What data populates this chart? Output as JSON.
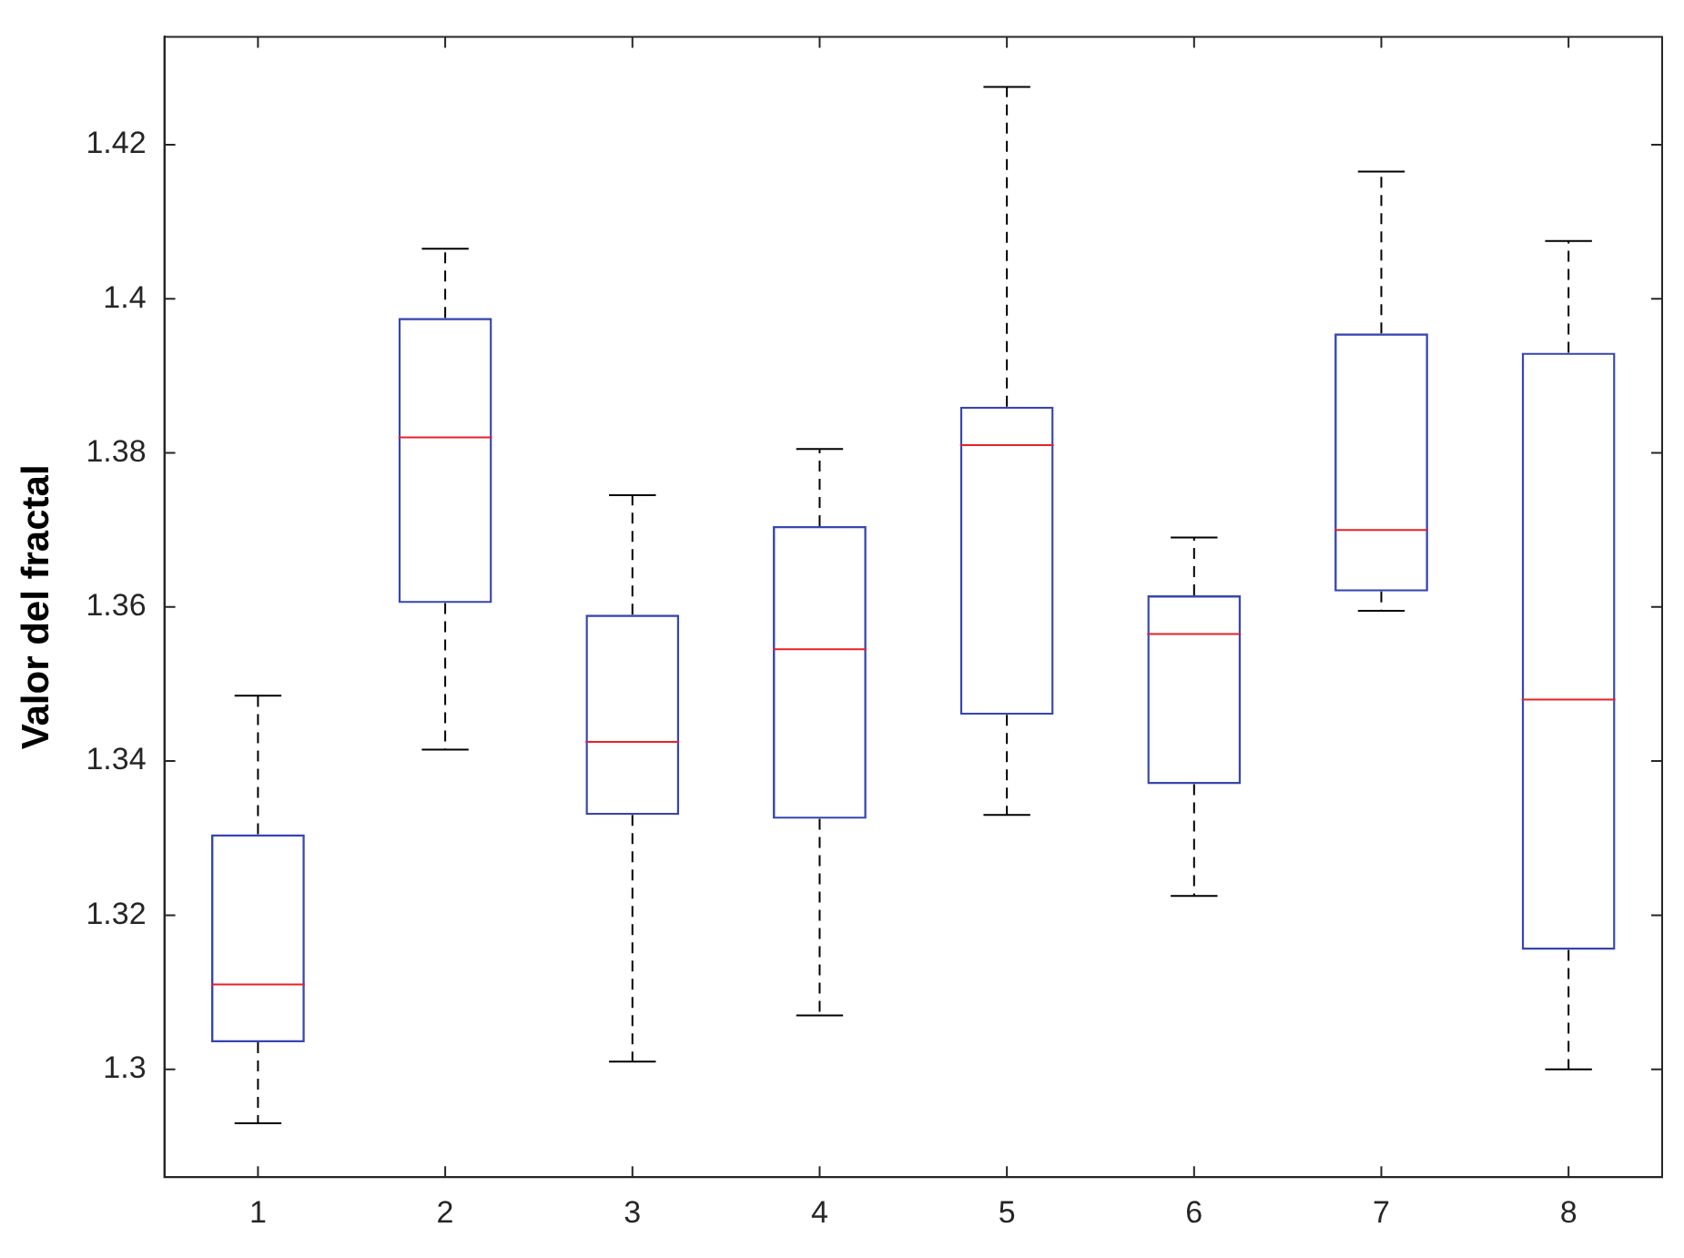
{
  "chart_data": {
    "type": "box",
    "ylabel": "Valor del fractal",
    "categories": [
      "1",
      "2",
      "3",
      "4",
      "5",
      "6",
      "7",
      "8"
    ],
    "ylim": [
      1.286,
      1.434
    ],
    "yticks": [
      1.3,
      1.32,
      1.34,
      1.36,
      1.38,
      1.4,
      1.42
    ],
    "grid": false,
    "legend": false,
    "series": [
      {
        "color": "#3646b0",
        "boxes": [
          {
            "low": 1.293,
            "q1": 1.3035,
            "median": 1.311,
            "q3": 1.3305,
            "high": 1.3485
          },
          {
            "low": 1.3415,
            "q1": 1.3605,
            "median": 1.382,
            "q3": 1.3975,
            "high": 1.4065
          },
          {
            "low": 1.301,
            "q1": 1.333,
            "median": 1.3425,
            "q3": 1.359,
            "high": 1.3745
          },
          {
            "low": 1.307,
            "q1": 1.3325,
            "median": 1.3545,
            "q3": 1.3705,
            "high": 1.3805
          },
          {
            "low": 1.333,
            "q1": 1.346,
            "median": 1.381,
            "q3": 1.386,
            "high": 1.4275
          },
          {
            "low": 1.3225,
            "q1": 1.337,
            "median": 1.3565,
            "q3": 1.3615,
            "high": 1.369
          },
          {
            "low": 1.3595,
            "q1": 1.362,
            "median": 1.37,
            "q3": 1.3955,
            "high": 1.4165
          },
          {
            "low": 1.3,
            "q1": 1.3155,
            "median": 1.348,
            "q3": 1.393,
            "high": 1.4075
          }
        ]
      }
    ]
  }
}
